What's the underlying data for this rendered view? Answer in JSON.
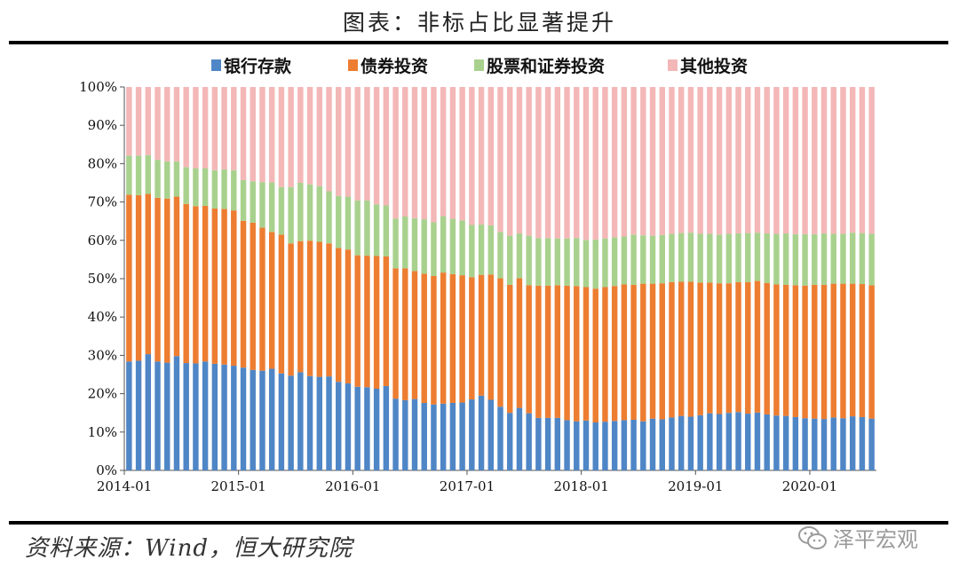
{
  "title": "图表：非标占比显著提升",
  "source": "资料来源：Wind，恒大研究院",
  "watermark": "泽平宏观",
  "colors": {
    "bank": "#4f86c6",
    "bond": "#ed7d31",
    "equity": "#a9d18e",
    "other": "#f4b7b7"
  },
  "chart_data": {
    "type": "bar",
    "stacked": true,
    "percent": true,
    "ylim": [
      0,
      100
    ],
    "yticks": [
      "0%",
      "10%",
      "20%",
      "30%",
      "40%",
      "50%",
      "60%",
      "70%",
      "80%",
      "90%",
      "100%"
    ],
    "xticks": [
      "2014-01",
      "2015-01",
      "2016-01",
      "2017-01",
      "2018-01",
      "2019-01",
      "2020-01"
    ],
    "legend_position": "top",
    "categories": [
      "2014-01",
      "2014-02",
      "2014-03",
      "2014-04",
      "2014-05",
      "2014-06",
      "2014-07",
      "2014-08",
      "2014-09",
      "2014-10",
      "2014-11",
      "2014-12",
      "2015-01",
      "2015-02",
      "2015-03",
      "2015-04",
      "2015-05",
      "2015-06",
      "2015-07",
      "2015-08",
      "2015-09",
      "2015-10",
      "2015-11",
      "2015-12",
      "2016-01",
      "2016-02",
      "2016-03",
      "2016-04",
      "2016-05",
      "2016-06",
      "2016-07",
      "2016-08",
      "2016-09",
      "2016-10",
      "2016-11",
      "2016-12",
      "2017-01",
      "2017-02",
      "2017-03",
      "2017-04",
      "2017-05",
      "2017-06",
      "2017-07",
      "2017-08",
      "2017-09",
      "2017-10",
      "2017-11",
      "2017-12",
      "2018-01",
      "2018-02",
      "2018-03",
      "2018-04",
      "2018-05",
      "2018-06",
      "2018-07",
      "2018-08",
      "2018-09",
      "2018-10",
      "2018-11",
      "2018-12",
      "2019-01",
      "2019-02",
      "2019-03",
      "2019-04",
      "2019-05",
      "2019-06",
      "2019-07",
      "2019-08",
      "2019-09",
      "2019-10",
      "2019-11",
      "2019-12",
      "2020-01",
      "2020-02",
      "2020-03",
      "2020-04",
      "2020-05",
      "2020-06",
      "2020-07"
    ],
    "series": [
      {
        "name": "银行存款",
        "key": "bank",
        "values": [
          28.4,
          28.6,
          30.3,
          28.4,
          28.1,
          29.8,
          28.0,
          27.9,
          28.4,
          27.8,
          27.6,
          27.3,
          26.8,
          26.2,
          26.0,
          26.5,
          25.3,
          24.7,
          25.6,
          24.6,
          24.4,
          24.5,
          23.1,
          22.7,
          21.8,
          21.7,
          21.3,
          22.0,
          18.7,
          18.3,
          18.6,
          17.6,
          17.2,
          17.4,
          17.6,
          17.7,
          18.5,
          19.5,
          18.4,
          16.6,
          15.0,
          16.3,
          14.9,
          13.7,
          13.7,
          13.7,
          13.1,
          12.8,
          13.0,
          12.5,
          12.7,
          12.9,
          13.1,
          13.2,
          12.8,
          13.5,
          13.3,
          13.8,
          14.2,
          14.0,
          14.4,
          14.9,
          14.7,
          15.0,
          15.2,
          14.8,
          15.1,
          14.6,
          14.3,
          14.2,
          13.9,
          13.6,
          13.5,
          13.4,
          13.8,
          13.6,
          14.1,
          13.9,
          13.5
        ]
      },
      {
        "name": "债券投资",
        "key": "bond",
        "values": [
          43.5,
          43.2,
          41.8,
          42.7,
          42.8,
          41.6,
          41.5,
          41.0,
          40.6,
          40.5,
          40.6,
          40.5,
          38.3,
          38.4,
          37.3,
          35.7,
          36.2,
          34.5,
          34.2,
          35.3,
          35.2,
          34.7,
          34.9,
          34.9,
          34.3,
          34.3,
          34.6,
          33.8,
          34.0,
          34.4,
          33.4,
          33.7,
          33.5,
          34.2,
          33.6,
          33.2,
          31.9,
          31.5,
          32.7,
          33.5,
          33.4,
          33.8,
          33.4,
          34.5,
          34.5,
          34.6,
          35.1,
          35.3,
          34.8,
          34.9,
          35.1,
          35.2,
          35.4,
          35.2,
          35.9,
          35.2,
          35.5,
          35.3,
          35.0,
          35.2,
          34.6,
          34.1,
          34.1,
          33.8,
          33.9,
          34.3,
          34.3,
          34.3,
          34.2,
          34.2,
          34.4,
          34.6,
          34.9,
          35.0,
          34.9,
          35.1,
          34.6,
          34.7,
          34.8
        ]
      },
      {
        "name": "股票和证券投资",
        "key": "equity",
        "values": [
          10.2,
          10.3,
          10.1,
          9.9,
          9.7,
          9.2,
          9.6,
          9.9,
          9.8,
          10.0,
          10.3,
          10.5,
          10.6,
          10.8,
          11.9,
          12.9,
          12.4,
          14.7,
          15.2,
          14.7,
          14.5,
          13.6,
          13.6,
          13.8,
          14.3,
          14.4,
          13.5,
          13.3,
          13.0,
          13.5,
          13.8,
          14.2,
          14.0,
          14.7,
          14.4,
          14.3,
          13.6,
          13.1,
          12.8,
          12.1,
          12.8,
          11.7,
          12.9,
          12.4,
          12.4,
          12.2,
          12.3,
          12.5,
          12.3,
          12.8,
          12.7,
          12.7,
          12.5,
          13.1,
          12.6,
          12.5,
          12.6,
          12.6,
          12.7,
          12.8,
          12.7,
          12.7,
          12.7,
          12.9,
          12.7,
          12.8,
          12.6,
          12.9,
          13.2,
          13.4,
          13.3,
          13.4,
          13.2,
          13.4,
          13.0,
          13.0,
          13.3,
          13.3,
          13.4
        ]
      },
      {
        "name": "其他投资",
        "key": "other",
        "values": [
          17.9,
          17.9,
          17.8,
          19.0,
          19.4,
          19.4,
          20.9,
          21.2,
          21.2,
          21.7,
          21.5,
          21.7,
          24.3,
          24.6,
          24.8,
          24.9,
          26.1,
          26.1,
          25.0,
          25.4,
          25.9,
          27.2,
          28.4,
          28.6,
          29.6,
          29.6,
          30.6,
          30.9,
          34.3,
          33.8,
          34.2,
          34.5,
          35.3,
          33.7,
          34.4,
          34.8,
          36.0,
          35.9,
          36.1,
          37.8,
          38.8,
          38.2,
          38.8,
          39.4,
          39.4,
          39.5,
          39.5,
          39.4,
          39.9,
          39.8,
          39.5,
          39.2,
          39.0,
          38.5,
          38.7,
          38.8,
          38.6,
          38.3,
          38.1,
          38.0,
          38.3,
          38.3,
          38.5,
          38.3,
          38.2,
          38.1,
          38.0,
          38.2,
          38.3,
          38.2,
          38.4,
          38.4,
          38.4,
          38.2,
          38.3,
          38.3,
          38.0,
          38.1,
          38.3
        ]
      }
    ]
  }
}
